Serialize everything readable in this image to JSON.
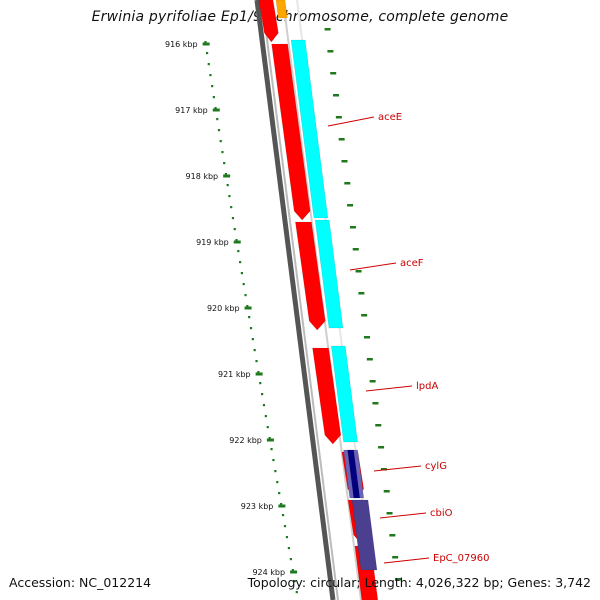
{
  "title": "Erwinia pyrifoliae Ep1/96 chromosome, complete genome",
  "footer": {
    "accession": "Accession: NC_012214",
    "info": "Topology: circular; Length: 4,026,322 bp; Genes: 3,742"
  },
  "scale": {
    "labels": [
      "916 kbp",
      "917 kbp",
      "918 kbp",
      "919 kbp",
      "920 kbp",
      "921 kbp",
      "922 kbp",
      "923 kbp",
      "924 kbp"
    ]
  },
  "genes": [
    {
      "name": "aceE"
    },
    {
      "name": "aceF"
    },
    {
      "name": "lpdA"
    },
    {
      "name": "cylG"
    },
    {
      "name": "cbiO"
    },
    {
      "name": "EpC_07960"
    }
  ],
  "colors": {
    "scale": "#1f7a1f",
    "gene_forward": "#ff0000",
    "cds_cyan": "#00ffff",
    "cds_navy": "#000080",
    "cds_purple": "#4b3f8f",
    "cds_orange": "#ffa500",
    "backbone": "#808080",
    "label": "#cc0000"
  }
}
